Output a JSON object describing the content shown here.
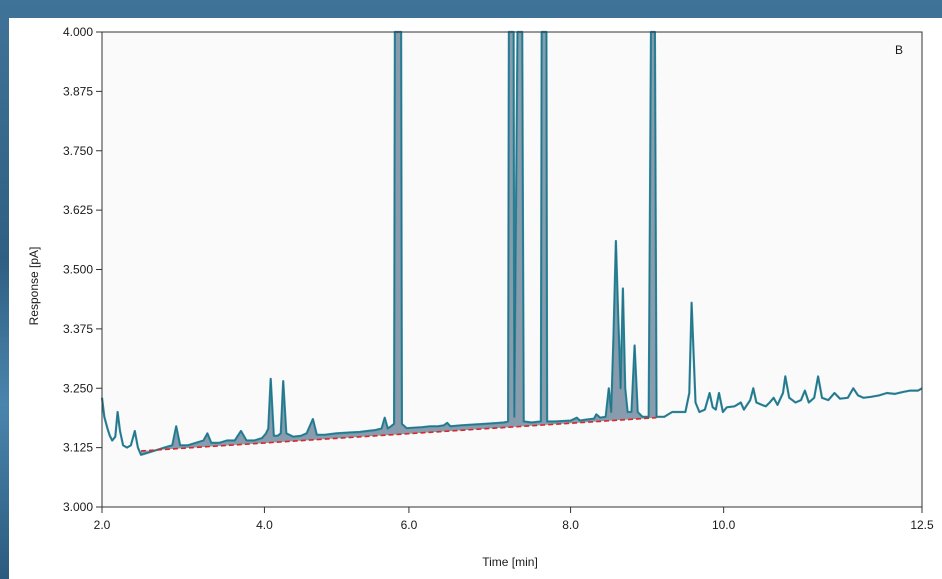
{
  "chart_data": {
    "type": "line",
    "panel_label": "B",
    "xlabel": "Time [min]",
    "ylabel": "Response [pA]",
    "xlim": [
      2.0,
      12.5
    ],
    "ylim": [
      3.0,
      4.0
    ],
    "x_ticks": [
      {
        "label": "2.0",
        "pos": 2.0
      },
      {
        "label": "4.0",
        "pos": 4.08
      },
      {
        "label": "6.0",
        "pos": 5.93
      },
      {
        "label": "8.0",
        "pos": 8.0
      },
      {
        "label": "10.0",
        "pos": 9.96
      },
      {
        "label": "12.5",
        "pos": 12.5
      }
    ],
    "y_ticks": [
      {
        "label": "4.000",
        "value": 4.0
      },
      {
        "label": "3.875",
        "value": 3.875
      },
      {
        "label": "3.750",
        "value": 3.75
      },
      {
        "label": "3.625",
        "value": 3.625
      },
      {
        "label": "3.500",
        "value": 3.5
      },
      {
        "label": "3.375",
        "value": 3.375
      },
      {
        "label": "3.250",
        "value": 3.25
      },
      {
        "label": "3.125",
        "value": 3.125
      },
      {
        "label": "3.000",
        "value": 3.0
      }
    ],
    "series": [
      {
        "color": "#2f8aa0",
        "points": [
          [
            2.0,
            3.23
          ],
          [
            2.03,
            3.19
          ],
          [
            2.07,
            3.165
          ],
          [
            2.1,
            3.15
          ],
          [
            2.13,
            3.14
          ],
          [
            2.17,
            3.148
          ],
          [
            2.2,
            3.2
          ],
          [
            2.23,
            3.16
          ],
          [
            2.27,
            3.13
          ],
          [
            2.32,
            3.125
          ],
          [
            2.37,
            3.13
          ],
          [
            2.42,
            3.16
          ],
          [
            2.46,
            3.125
          ],
          [
            2.5,
            3.11
          ],
          [
            2.6,
            3.115
          ],
          [
            2.7,
            3.12
          ],
          [
            2.8,
            3.125
          ],
          [
            2.9,
            3.13
          ],
          [
            2.95,
            3.17
          ],
          [
            3.0,
            3.13
          ],
          [
            3.1,
            3.13
          ],
          [
            3.2,
            3.135
          ],
          [
            3.3,
            3.14
          ],
          [
            3.35,
            3.155
          ],
          [
            3.4,
            3.135
          ],
          [
            3.5,
            3.135
          ],
          [
            3.6,
            3.14
          ],
          [
            3.7,
            3.14
          ],
          [
            3.78,
            3.16
          ],
          [
            3.85,
            3.14
          ],
          [
            3.95,
            3.14
          ],
          [
            4.05,
            3.145
          ],
          [
            4.1,
            3.155
          ],
          [
            4.13,
            3.165
          ],
          [
            4.16,
            3.27
          ],
          [
            4.2,
            3.15
          ],
          [
            4.25,
            3.15
          ],
          [
            4.29,
            3.155
          ],
          [
            4.32,
            3.265
          ],
          [
            4.36,
            3.155
          ],
          [
            4.45,
            3.148
          ],
          [
            4.55,
            3.15
          ],
          [
            4.62,
            3.155
          ],
          [
            4.7,
            3.185
          ],
          [
            4.75,
            3.152
          ],
          [
            4.85,
            3.152
          ],
          [
            5.0,
            3.155
          ],
          [
            5.1,
            3.156
          ],
          [
            5.2,
            3.157
          ],
          [
            5.3,
            3.158
          ],
          [
            5.4,
            3.16
          ],
          [
            5.5,
            3.162
          ],
          [
            5.58,
            3.165
          ],
          [
            5.62,
            3.188
          ],
          [
            5.66,
            3.165
          ],
          [
            5.7,
            3.17
          ],
          [
            5.74,
            3.175
          ],
          [
            5.75,
            4.0
          ],
          [
            5.83,
            4.0
          ],
          [
            5.84,
            3.175
          ],
          [
            5.9,
            3.166
          ],
          [
            6.0,
            3.167
          ],
          [
            6.1,
            3.168
          ],
          [
            6.2,
            3.17
          ],
          [
            6.3,
            3.17
          ],
          [
            6.38,
            3.172
          ],
          [
            6.42,
            3.177
          ],
          [
            6.46,
            3.17
          ],
          [
            6.6,
            3.172
          ],
          [
            6.8,
            3.174
          ],
          [
            7.0,
            3.176
          ],
          [
            7.15,
            3.178
          ],
          [
            7.2,
            3.18
          ],
          [
            7.21,
            4.0
          ],
          [
            7.27,
            4.0
          ],
          [
            7.28,
            3.19
          ],
          [
            7.32,
            4.0
          ],
          [
            7.38,
            4.0
          ],
          [
            7.4,
            3.18
          ],
          [
            7.5,
            3.178
          ],
          [
            7.62,
            3.18
          ],
          [
            7.63,
            4.0
          ],
          [
            7.69,
            4.0
          ],
          [
            7.7,
            3.18
          ],
          [
            7.8,
            3.18
          ],
          [
            8.0,
            3.182
          ],
          [
            8.08,
            3.188
          ],
          [
            8.12,
            3.182
          ],
          [
            8.2,
            3.184
          ],
          [
            8.3,
            3.186
          ],
          [
            8.33,
            3.195
          ],
          [
            8.38,
            3.188
          ],
          [
            8.45,
            3.19
          ],
          [
            8.49,
            3.25
          ],
          [
            8.52,
            3.2
          ],
          [
            8.55,
            3.36
          ],
          [
            8.58,
            3.56
          ],
          [
            8.61,
            3.4
          ],
          [
            8.64,
            3.25
          ],
          [
            8.67,
            3.46
          ],
          [
            8.7,
            3.25
          ],
          [
            8.73,
            3.2
          ],
          [
            8.78,
            3.2
          ],
          [
            8.82,
            3.34
          ],
          [
            8.86,
            3.2
          ],
          [
            8.92,
            3.19
          ],
          [
            9.0,
            3.19
          ],
          [
            9.03,
            4.0
          ],
          [
            9.08,
            4.0
          ],
          [
            9.1,
            3.19
          ],
          [
            9.2,
            3.19
          ],
          [
            9.3,
            3.2
          ],
          [
            9.4,
            3.2
          ],
          [
            9.47,
            3.2
          ],
          [
            9.52,
            3.24
          ],
          [
            9.55,
            3.43
          ],
          [
            9.6,
            3.22
          ],
          [
            9.65,
            3.2
          ],
          [
            9.72,
            3.205
          ],
          [
            9.78,
            3.24
          ],
          [
            9.82,
            3.21
          ],
          [
            9.86,
            3.205
          ],
          [
            9.9,
            3.24
          ],
          [
            9.95,
            3.2
          ],
          [
            10.0,
            3.21
          ],
          [
            10.1,
            3.212
          ],
          [
            10.18,
            3.22
          ],
          [
            10.22,
            3.205
          ],
          [
            10.3,
            3.225
          ],
          [
            10.34,
            3.25
          ],
          [
            10.38,
            3.22
          ],
          [
            10.45,
            3.215
          ],
          [
            10.5,
            3.212
          ],
          [
            10.55,
            3.22
          ],
          [
            10.6,
            3.23
          ],
          [
            10.65,
            3.215
          ],
          [
            10.72,
            3.24
          ],
          [
            10.75,
            3.275
          ],
          [
            10.8,
            3.23
          ],
          [
            10.88,
            3.22
          ],
          [
            10.95,
            3.225
          ],
          [
            11.0,
            3.245
          ],
          [
            11.05,
            3.22
          ],
          [
            11.12,
            3.23
          ],
          [
            11.17,
            3.275
          ],
          [
            11.22,
            3.23
          ],
          [
            11.3,
            3.225
          ],
          [
            11.38,
            3.24
          ],
          [
            11.45,
            3.228
          ],
          [
            11.55,
            3.23
          ],
          [
            11.62,
            3.25
          ],
          [
            11.68,
            3.235
          ],
          [
            11.75,
            3.23
          ],
          [
            11.85,
            3.232
          ],
          [
            11.95,
            3.235
          ],
          [
            12.05,
            3.24
          ],
          [
            12.15,
            3.238
          ],
          [
            12.25,
            3.242
          ],
          [
            12.35,
            3.245
          ],
          [
            12.45,
            3.245
          ],
          [
            12.5,
            3.25
          ]
        ]
      }
    ],
    "baseline": {
      "color": "#d9262a",
      "x": [
        2.5,
        9.1
      ],
      "y": [
        3.118,
        3.188
      ]
    },
    "grid": false,
    "colors": {
      "trace": "#2f8aa0",
      "trace_dark": "#1f5d6c",
      "peak_fill": "#2a4f6e",
      "baseline": "#d9262a"
    }
  }
}
